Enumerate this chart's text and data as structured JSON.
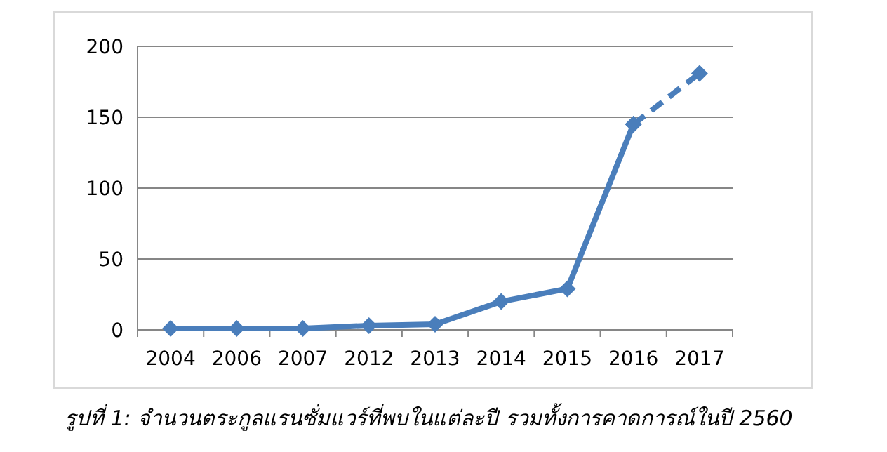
{
  "chart_data": {
    "type": "line",
    "categories": [
      "2004",
      "2006",
      "2007",
      "2012",
      "2013",
      "2014",
      "2015",
      "2016",
      "2017"
    ],
    "series": [
      {
        "color": "#4a7ebb",
        "line_style": "solid",
        "values": [
          1,
          1,
          1,
          3,
          4,
          20,
          29,
          145,
          null
        ]
      },
      {
        "color": "#4a7ebb",
        "line_style": "dashed",
        "values": [
          null,
          null,
          null,
          null,
          null,
          null,
          null,
          145,
          181
        ]
      }
    ],
    "ylim": [
      0,
      200
    ],
    "yticks": [
      0,
      50,
      100,
      150,
      200
    ],
    "grid": "y",
    "marker": "diamond",
    "annotations": [
      "รูปที่ 1: จำนวนตระกูลแรนซั่มแวร์ที่พบในแต่ละปี รวมทั้งการคาดการณ์ในปี 2560"
    ]
  }
}
